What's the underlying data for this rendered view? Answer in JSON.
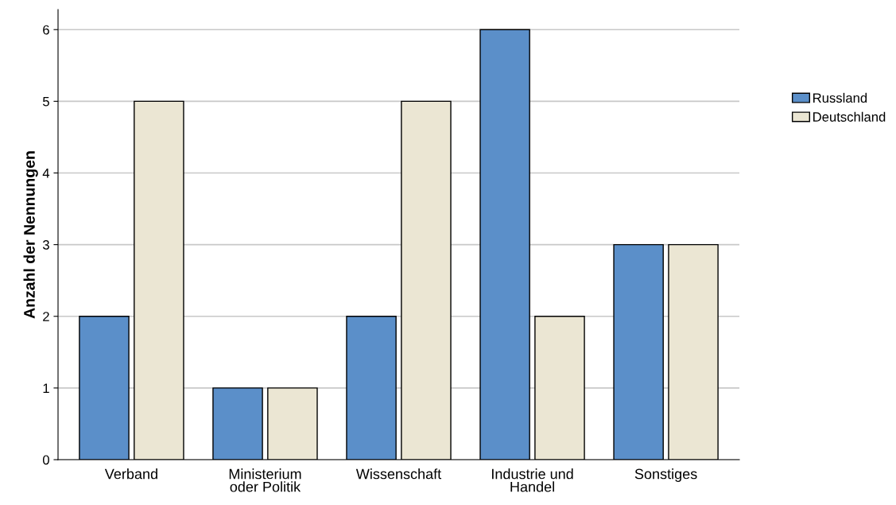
{
  "chart_data": {
    "type": "bar",
    "ylabel": "Anzahl der Nennungen",
    "categories": [
      "Verband",
      "Ministerium\noder Politik",
      "Wissenschaft",
      "Industrie und\nHandel",
      "Sonstiges"
    ],
    "series": [
      {
        "name": "Russland",
        "color": "#5b8fc9",
        "values": [
          2,
          1,
          2,
          6,
          3
        ]
      },
      {
        "name": "Deutschland",
        "color": "#ebe6d3",
        "values": [
          5,
          1,
          5,
          2,
          3
        ]
      }
    ],
    "ylim": [
      0,
      6.28
    ],
    "yticks": [
      0,
      1,
      2,
      3,
      4,
      5,
      6
    ],
    "grid": "y",
    "legend": "right"
  }
}
